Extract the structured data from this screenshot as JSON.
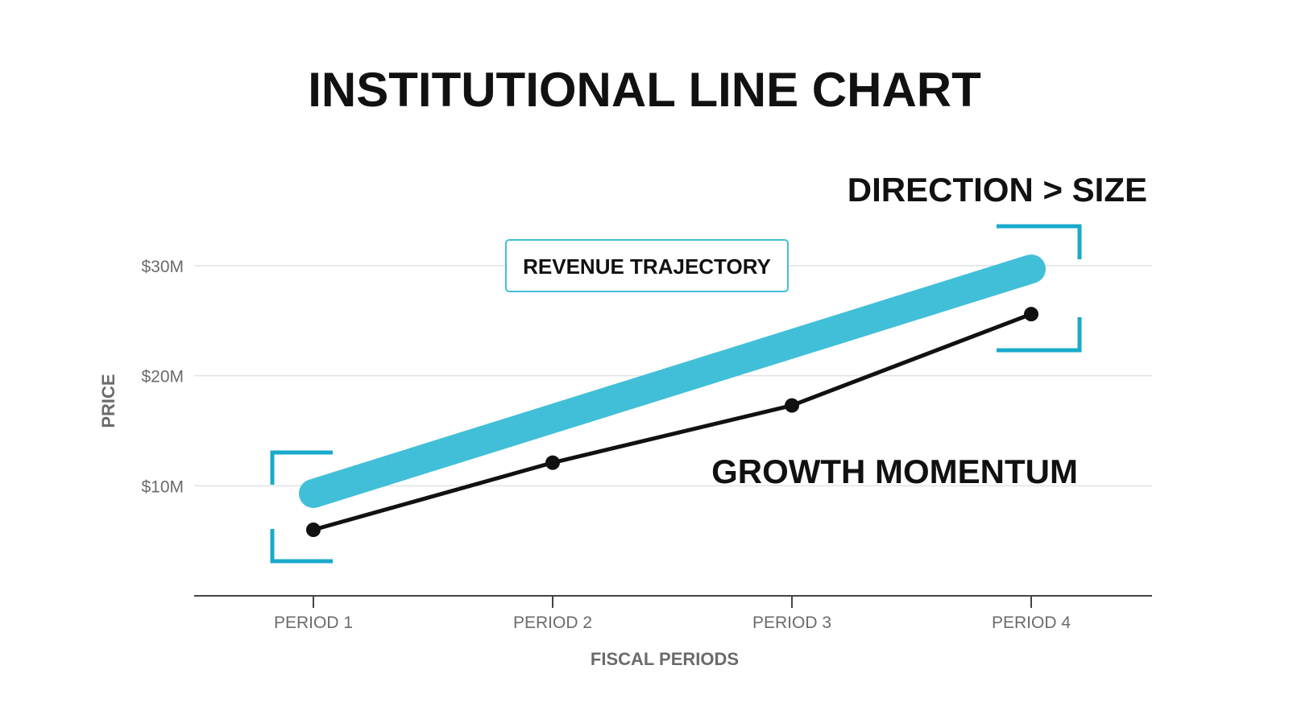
{
  "title": "INSTITUTIONAL LINE CHART",
  "callouts": {
    "direction": "DIRECTION > SIZE",
    "momentum": "GROWTH MOMENTUM",
    "box_label": "REVENUE TRAJECTORY"
  },
  "colors": {
    "accent": "#42bfd8",
    "bracket": "#19aacb",
    "line": "#111111",
    "grid": "#e2e2e2",
    "axis": "#444444",
    "muted": "#6b6b6b"
  },
  "chart_data": {
    "type": "line",
    "title": "INSTITUTIONAL LINE CHART",
    "xlabel": "FISCAL PERIODS",
    "ylabel": "PRICE",
    "categories": [
      "PERIOD 1",
      "PERIOD 2",
      "PERIOD 3",
      "PERIOD 4"
    ],
    "y_ticks": [
      10,
      20,
      30
    ],
    "y_tick_labels": [
      "$10M",
      "$20M",
      "$30M"
    ],
    "ylim": [
      0,
      30
    ],
    "grid": true,
    "series": [
      {
        "role": "trend",
        "values": [
          9.3,
          16.1,
          22.9,
          29.7
        ]
      },
      {
        "role": "actual",
        "values": [
          6.0,
          12.1,
          17.3,
          25.6
        ]
      }
    ]
  }
}
